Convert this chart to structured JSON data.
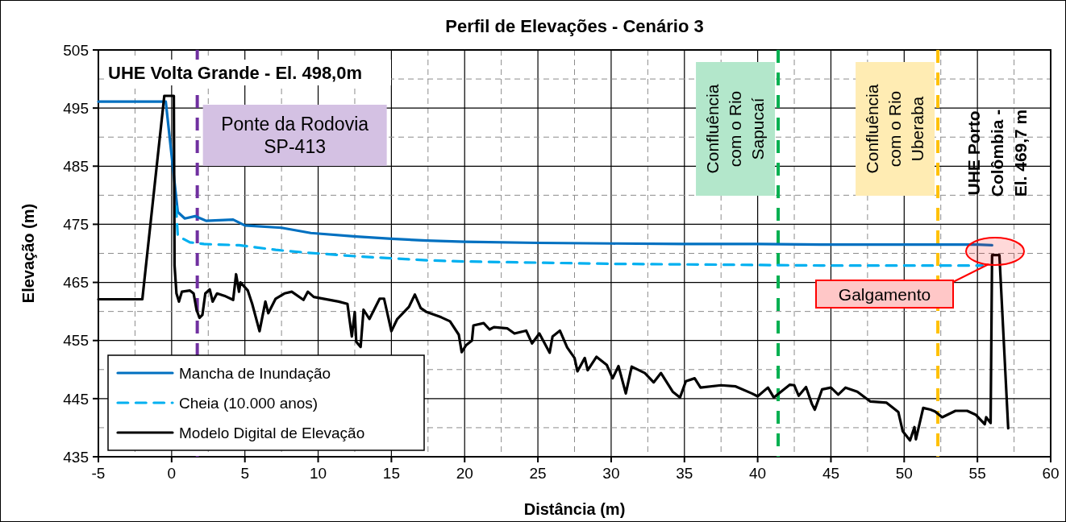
{
  "chart_data": {
    "type": "line",
    "title": "Perfil de Elevações - Cenário 3",
    "xlabel": "Distância (m)",
    "ylabel": "Elevação (m)",
    "xlim": [
      -5,
      60
    ],
    "ylim": [
      435,
      505
    ],
    "xticks": [
      -5,
      {
        "value": -2.5,
        "label": null
      },
      0,
      {
        "value": 2.5,
        "label": null
      },
      5,
      {
        "value": 7.5,
        "label": null
      },
      10,
      {
        "value": 12.5,
        "label": null
      },
      15,
      {
        "value": 17.5,
        "label": null
      },
      20,
      {
        "value": 22.5,
        "label": null
      },
      25,
      {
        "value": 27.5,
        "label": null
      },
      30,
      {
        "value": 32.5,
        "label": null
      },
      35,
      {
        "value": 37.5,
        "label": null
      },
      40,
      {
        "value": 42.5,
        "label": null
      },
      45,
      {
        "value": 47.5,
        "label": null
      },
      50,
      {
        "value": 52.5,
        "label": null
      },
      55,
      {
        "value": 57.5,
        "label": null
      },
      60
    ],
    "yticks": [
      435,
      {
        "value": 440,
        "label": null
      },
      445,
      {
        "value": 450,
        "label": null
      },
      455,
      {
        "value": 460,
        "label": null
      },
      465,
      {
        "value": 470,
        "label": null
      },
      475,
      {
        "value": 480,
        "label": null
      },
      485,
      {
        "value": 490,
        "label": null
      },
      495,
      {
        "value": 500,
        "label": null
      },
      505
    ],
    "grid": true,
    "legend": "bottom left",
    "series": [
      {
        "name": "Mancha de Inundação",
        "color": "#0070c0",
        "line_style": "solid",
        "x": [
          -5,
          -0.4,
          0.42,
          0.9,
          1.6,
          2.35,
          4.2,
          5,
          7.5,
          9.5,
          12.6,
          15,
          17.4,
          20,
          25,
          30,
          35,
          40,
          45,
          50,
          55,
          56
        ],
        "values": [
          496.1,
          496.1,
          477.1,
          476,
          476.4,
          475.6,
          475.8,
          474.8,
          474.4,
          473.5,
          472.9,
          472.5,
          472.2,
          472,
          471.8,
          471.7,
          471.6,
          471.6,
          471.5,
          471.5,
          471.5,
          471.4
        ]
      },
      {
        "name": "Cheia (10.000 anos)",
        "color": "#00b0f0",
        "line_style": "dashed",
        "x": [
          0.3,
          0.42,
          1.25,
          2.2,
          4.6,
          7.1,
          9.3,
          12.6,
          17.4,
          20,
          25,
          30,
          35,
          40,
          45,
          50,
          55.35
        ],
        "values": [
          478.1,
          473,
          471.9,
          471.6,
          471.4,
          470.6,
          470.1,
          469.5,
          468.8,
          468.6,
          468.4,
          468.2,
          468.1,
          468,
          467.9,
          467.9,
          467.9
        ]
      },
      {
        "name": "Modelo Digital de Elevação",
        "color": "#000000",
        "line_style": "solid",
        "x": [
          -5,
          -2,
          -0.5,
          0.15,
          0.2,
          0.33,
          0.5,
          0.7,
          1.25,
          1.5,
          1.7,
          1.9,
          2.1,
          2.3,
          2.6,
          2.8,
          3.1,
          3.6,
          4.2,
          4.4,
          4.6,
          4.7,
          5.2,
          5.5,
          6,
          6.4,
          6.6,
          7.1,
          7.7,
          8.2,
          9,
          9.3,
          9.7,
          11.4,
          12,
          12.3,
          12.5,
          12.6,
          12.9,
          13.1,
          13.5,
          14.2,
          14.5,
          15,
          15.4,
          16.2,
          16.6,
          17,
          17.4,
          18.4,
          19,
          19.6,
          19.8,
          20.1,
          20.5,
          20.6,
          21.3,
          21.7,
          22,
          22.9,
          23.4,
          24.2,
          24.6,
          25.1,
          25.8,
          26,
          26.5,
          27,
          27.5,
          27.7,
          28.2,
          28.4,
          29,
          29.7,
          30.1,
          30.5,
          31,
          31.4,
          32.3,
          32.9,
          33.4,
          34.2,
          34.7,
          35.1,
          35.7,
          36.1,
          37.5,
          38.5,
          39.6,
          40,
          40.7,
          41.1,
          41.7,
          42.2,
          42.5,
          42.8,
          43.3,
          43.7,
          43.9,
          44.4,
          45,
          45.5,
          46,
          46.8,
          47.7,
          48.8,
          49.6,
          49.9,
          50.4,
          50.7,
          50.8,
          51.3,
          51.8,
          52.1,
          52.6,
          53.5,
          54.3,
          54.9,
          55.5,
          55.6,
          55.9,
          56,
          56.5,
          57.1
        ],
        "values": [
          462.1,
          462.1,
          497.1,
          497.1,
          467.9,
          463.1,
          461.7,
          463.4,
          463.6,
          463.1,
          460.3,
          458.9,
          459.4,
          463.1,
          463.8,
          461.7,
          463.1,
          462.7,
          462,
          466.4,
          463.4,
          465,
          463.6,
          461.3,
          456.6,
          461.7,
          459.7,
          462.2,
          463.1,
          463.4,
          462,
          463.4,
          462.5,
          461.7,
          461.3,
          455.7,
          459.9,
          454.8,
          453.9,
          460.3,
          458.7,
          462.2,
          462.2,
          456.6,
          458.7,
          460.8,
          462.9,
          460.6,
          459.9,
          459,
          458.3,
          456,
          453,
          454.2,
          455,
          457.6,
          458,
          456.9,
          457.3,
          457.1,
          456.2,
          456.7,
          454.5,
          456.2,
          452.9,
          455.7,
          456.7,
          453.8,
          452,
          449.7,
          452,
          449.9,
          452.2,
          450.8,
          448.5,
          450.6,
          445.9,
          450.5,
          449.4,
          447.8,
          449.4,
          446.2,
          445.2,
          448,
          448.5,
          446.9,
          447.3,
          447.1,
          445.9,
          445.4,
          446.9,
          445.2,
          446.4,
          447.4,
          447.3,
          445.5,
          447,
          444.1,
          443.1,
          446.6,
          446.9,
          445.7,
          446.9,
          446.2,
          444.5,
          444.3,
          442.7,
          439.4,
          437.8,
          440.1,
          438,
          443.4,
          443.1,
          442.8,
          441.8,
          442.9,
          442.9,
          442.2,
          440.6,
          441.8,
          440.8,
          469.7,
          469.7,
          439.9
        ]
      }
    ],
    "ref_lines": [
      {
        "axis": "x",
        "value": 1.75,
        "label": "Ponte da Rodovia\nSP-413",
        "color": "#7030a0",
        "line_style": "dashed"
      },
      {
        "axis": "x",
        "value": 41.4,
        "label": "Confluência\ncom o Rio\nSapucaí",
        "color": "#00b050",
        "line_style": "dashed"
      },
      {
        "axis": "x",
        "value": 52.3,
        "label": "Confluência\ncom o Rio\nUberaba",
        "color": "#ffc000",
        "line_style": "dashed"
      }
    ],
    "annotations": [
      "UHE Volta Grande - El. 498,0m",
      "UHE Porto\nColômbia -\nEl. 469,7 m",
      "Galgamento"
    ]
  }
}
